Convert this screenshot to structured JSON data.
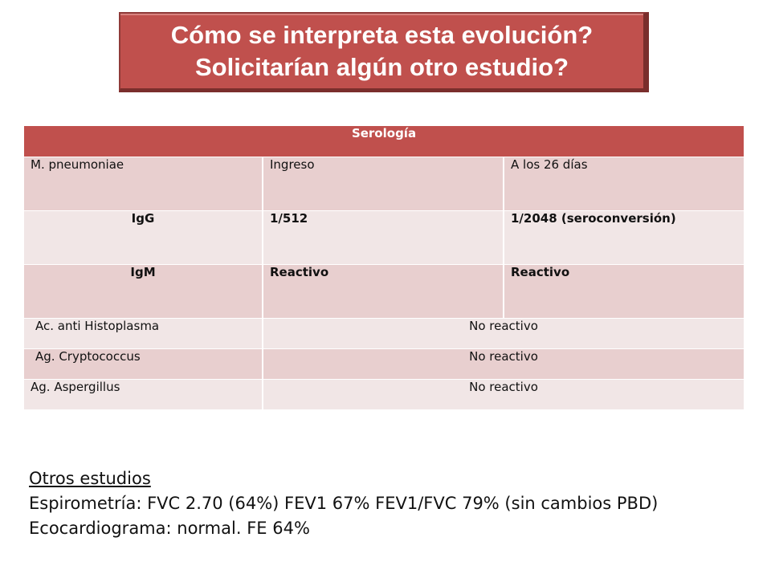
{
  "title": {
    "line1": "Cómo se interpreta esta evolución?",
    "line2": "Solicitarían algún otro estudio?"
  },
  "table": {
    "header": "Serología",
    "rows": [
      [
        "M. pneumoniae",
        "Ingreso",
        "A los 26 días"
      ],
      [
        "IgG",
        "1/512",
        "1/2048 (seroconversión)"
      ],
      [
        "IgM",
        "Reactivo",
        "Reactivo"
      ],
      [
        "Ac. anti Histoplasma",
        "No reactivo"
      ],
      [
        "Ag. Cryptococcus",
        "No reactivo"
      ],
      [
        "Ag. Aspergillus",
        "No reactivo"
      ]
    ]
  },
  "other_studies": {
    "heading": "Otros estudios",
    "lines": [
      "Espirometría: FVC 2.70 (64%) FEV1 67% FEV1/FVC 79% (sin cambios PBD)",
      "Ecocardiograma: normal. FE 64%"
    ]
  }
}
